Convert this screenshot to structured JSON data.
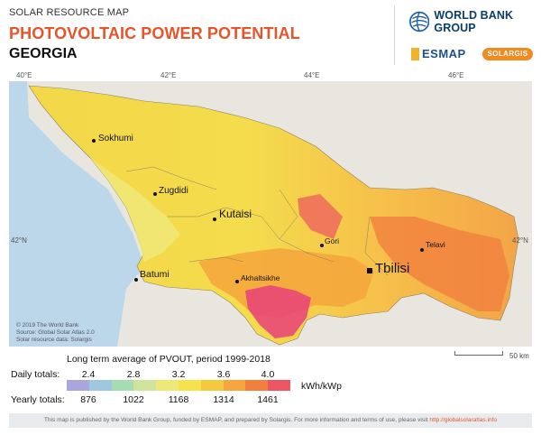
{
  "header": {
    "subtitle": "SOLAR RESOURCE MAP",
    "title": "PHOTOVOLTAIC POWER POTENTIAL",
    "country": "GEORGIA"
  },
  "logos": {
    "world_bank": "WORLD BANK GROUP",
    "esmap": "ESMAP",
    "solargis": "SOLARGIS"
  },
  "map": {
    "longitude_labels": [
      "40°E",
      "42°E",
      "44°E",
      "46°E"
    ],
    "latitude_labels": {
      "left": "42°N",
      "right": "42°N"
    },
    "cities": [
      {
        "name": "Sokhumi"
      },
      {
        "name": "Zugdidi"
      },
      {
        "name": "Kutaisi"
      },
      {
        "name": "Batumi"
      },
      {
        "name": "Akhaltsikhe"
      },
      {
        "name": "Gori"
      },
      {
        "name": "Tbilisi"
      },
      {
        "name": "Telavi"
      }
    ],
    "copyright": [
      "© 2019 The World Bank",
      "Source: Global Solar Atlas 2.0",
      "Solar resource data: Solargis"
    ],
    "scale_label": "50 km",
    "colors": {
      "sea": "#bcd6ea",
      "land_outside": "#e9e6df",
      "low": "#f3e25a",
      "mid": "#f6b94a",
      "high": "#ee7b3c",
      "peak": "#e8417a"
    }
  },
  "legend": {
    "title": "Long term average of PVOUT, period 1999-2018",
    "daily_label": "Daily totals:",
    "yearly_label": "Yearly totals:",
    "daily_values": [
      "2.4",
      "2.8",
      "3.2",
      "3.6",
      "4.0"
    ],
    "yearly_values": [
      "876",
      "1022",
      "1168",
      "1314",
      "1461"
    ],
    "unit": "kWh/kWp",
    "colors": [
      "#a9a6dd",
      "#9fc8de",
      "#a6dcb4",
      "#cfe49a",
      "#eee878",
      "#f6e24c",
      "#f4c93d",
      "#f5a53c",
      "#f1803e",
      "#ec5561"
    ]
  },
  "footer": {
    "text": "This map is published by the World Bank Group, funded by ESMAP, and prepared by Solargis. For more information and terms of use, please visit",
    "link": "http://globalsolaratlas.info"
  }
}
